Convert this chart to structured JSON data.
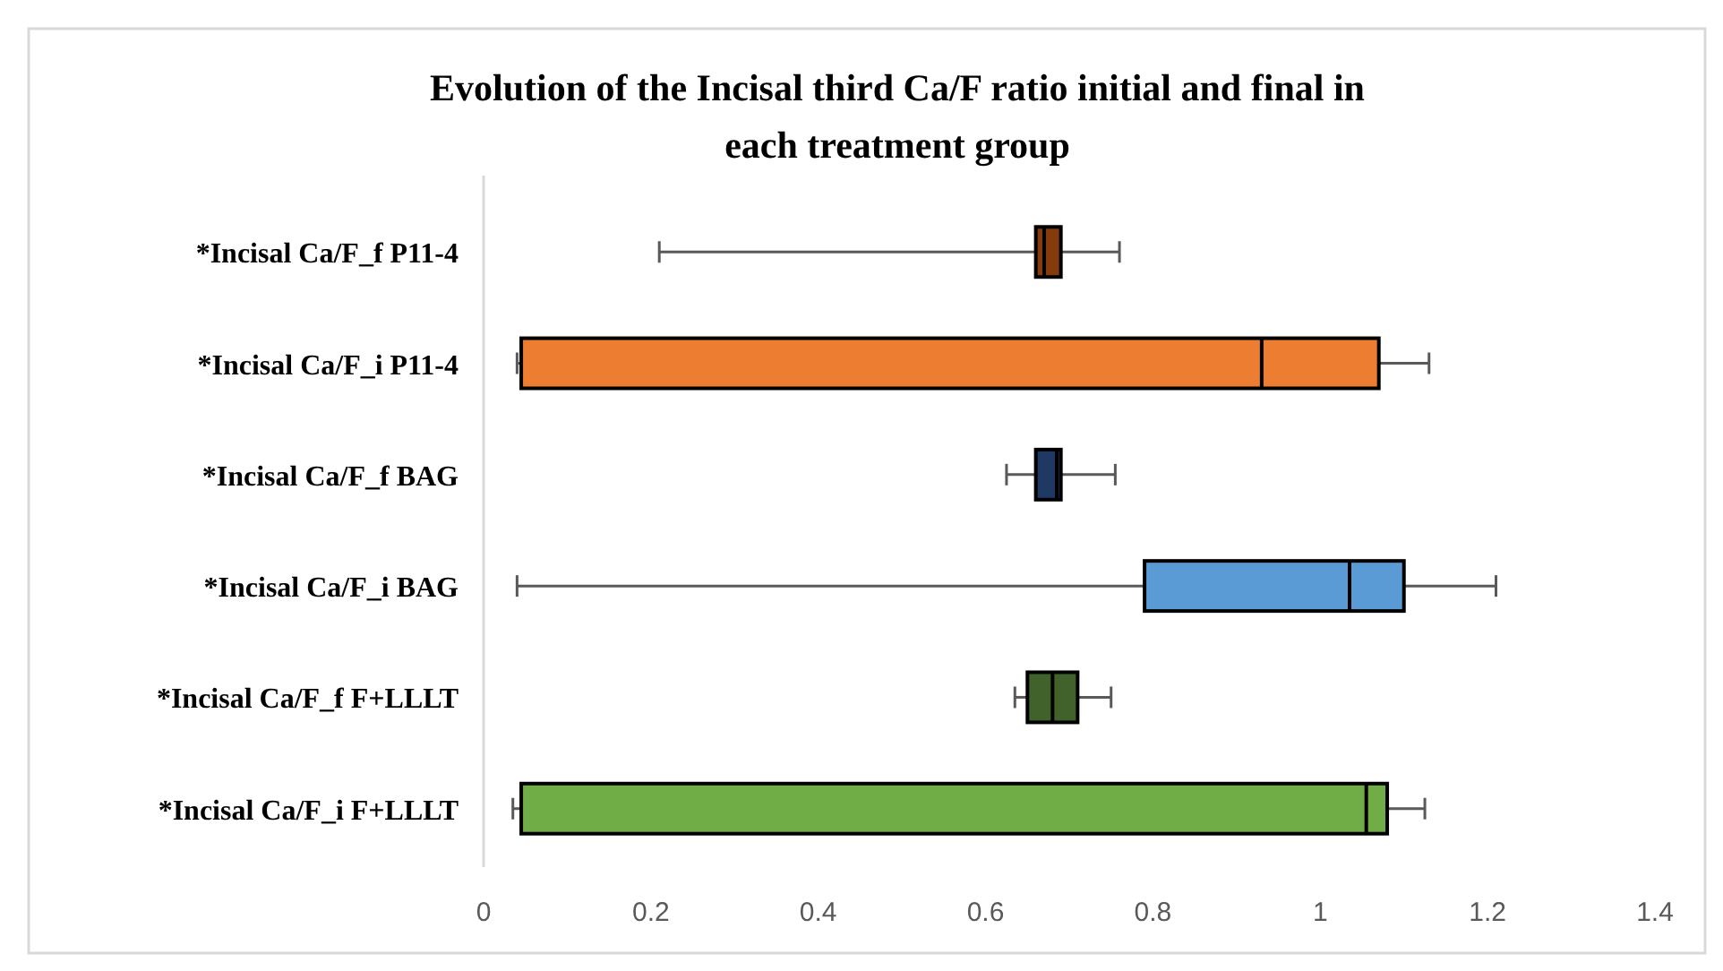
{
  "chart_data": {
    "type": "box",
    "orientation": "horizontal",
    "title": "Evolution of the Incisal third Ca/F ratio initial and final in each treatment group",
    "categories": [
      "*Incisal Ca/F_f P11-4",
      "*Incisal Ca/F_i P11-4",
      "*Incisal Ca/F_f BAG",
      "*Incisal Ca/F_i BAG",
      "*Incisal Ca/F_f F+LLLT",
      "*Incisal Ca/F_i F+LLLT"
    ],
    "colors": [
      "#843c0c",
      "#ed7d31",
      "#1f3864",
      "#5b9bd5",
      "#41622a",
      "#70ad47"
    ],
    "boxes": [
      {
        "low": 0.21,
        "q1": 0.66,
        "median": 0.67,
        "q3": 0.69,
        "high": 0.76
      },
      {
        "low": 0.04,
        "q1": 0.045,
        "median": 0.93,
        "q3": 1.07,
        "high": 1.13
      },
      {
        "low": 0.625,
        "q1": 0.66,
        "median": 0.685,
        "q3": 0.69,
        "high": 0.755
      },
      {
        "low": 0.04,
        "q1": 0.79,
        "median": 1.035,
        "q3": 1.1,
        "high": 1.21
      },
      {
        "low": 0.635,
        "q1": 0.65,
        "median": 0.68,
        "q3": 0.71,
        "high": 0.75
      },
      {
        "low": 0.035,
        "q1": 0.045,
        "median": 1.055,
        "q3": 1.08,
        "high": 1.125
      }
    ],
    "xlim": [
      0,
      1.4
    ],
    "xticks": [
      0,
      0.2,
      0.4,
      0.6,
      0.8,
      1,
      1.2,
      1.4
    ],
    "grid": false
  }
}
